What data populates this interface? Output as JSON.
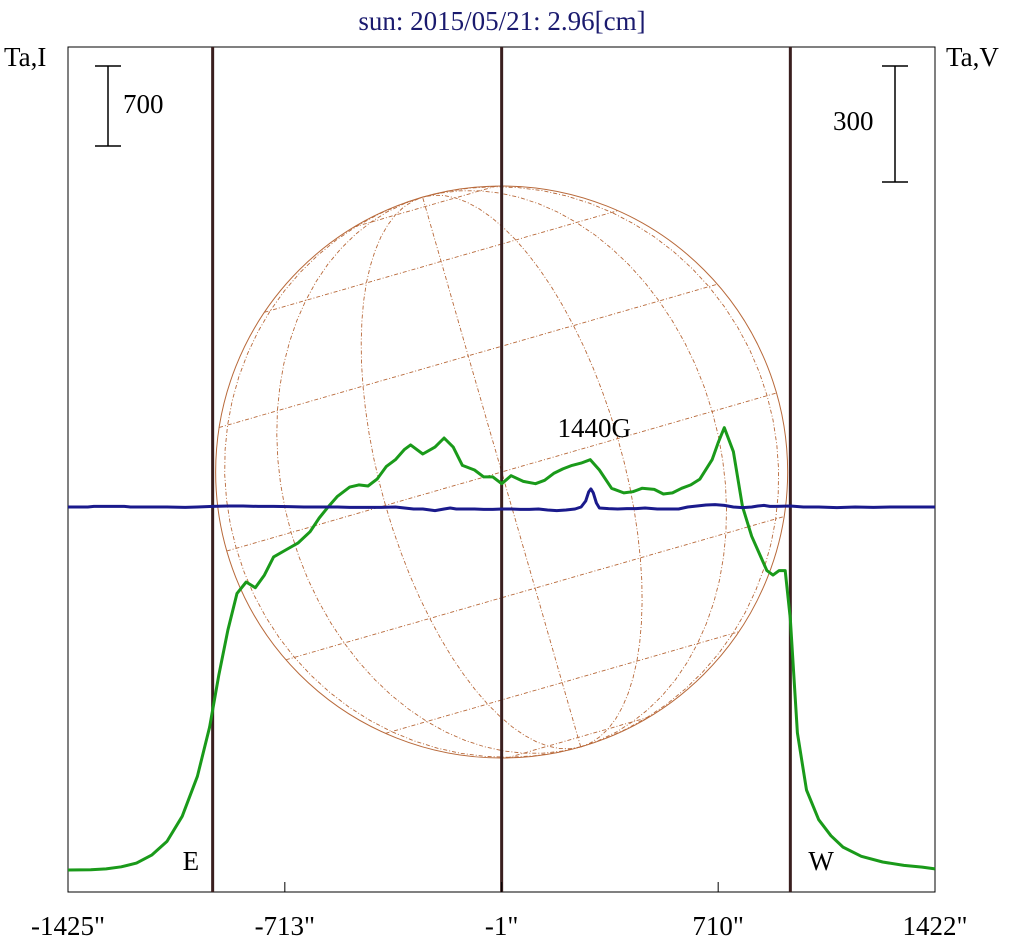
{
  "chart_data": {
    "type": "line",
    "title": "sun: 2015/05/21: 2.96[cm]",
    "left_axis_label": "Ta,I",
    "right_axis_label": "Ta,V",
    "left_scale_bar": "700",
    "right_scale_bar": "300",
    "x_tick_labels": [
      "-1425\"",
      "-713\"",
      "-1\"",
      "710\"",
      "1422\""
    ],
    "x_ticks": [
      -1425,
      -713,
      -1,
      710,
      1422
    ],
    "xlim": [
      -1425,
      1422
    ],
    "limb_markers": [
      {
        "label": "E",
        "x": -950
      },
      {
        "label": "W",
        "x": 947
      }
    ],
    "center_marker_x": -1,
    "annotation": {
      "text": "1440G",
      "x": 290
    },
    "colors": {
      "intensity": "#1a9a1a",
      "polarization": "#1a1a8c",
      "disk": "#b8693a",
      "markers": "#3a1f1f",
      "title": "#1a1a6e"
    },
    "series": [
      {
        "name": "Ta,I",
        "color": "#1a9a1a",
        "points": [
          [
            -1425,
            0
          ],
          [
            -1350,
            3
          ],
          [
            -1300,
            10
          ],
          [
            -1250,
            28
          ],
          [
            -1200,
            60
          ],
          [
            -1150,
            130
          ],
          [
            -1100,
            250
          ],
          [
            -1050,
            470
          ],
          [
            -1000,
            820
          ],
          [
            -960,
            1250
          ],
          [
            -930,
            1700
          ],
          [
            -900,
            2100
          ],
          [
            -870,
            2420
          ],
          [
            -840,
            2520
          ],
          [
            -810,
            2470
          ],
          [
            -780,
            2580
          ],
          [
            -750,
            2740
          ],
          [
            -710,
            2800
          ],
          [
            -670,
            2860
          ],
          [
            -630,
            2960
          ],
          [
            -600,
            3080
          ],
          [
            -570,
            3180
          ],
          [
            -540,
            3270
          ],
          [
            -500,
            3350
          ],
          [
            -470,
            3370
          ],
          [
            -440,
            3360
          ],
          [
            -410,
            3420
          ],
          [
            -380,
            3530
          ],
          [
            -350,
            3590
          ],
          [
            -320,
            3680
          ],
          [
            -300,
            3720
          ],
          [
            -260,
            3640
          ],
          [
            -220,
            3700
          ],
          [
            -190,
            3780
          ],
          [
            -160,
            3700
          ],
          [
            -130,
            3540
          ],
          [
            -90,
            3500
          ],
          [
            -60,
            3440
          ],
          [
            -30,
            3440
          ],
          [
            -1,
            3380
          ],
          [
            30,
            3450
          ],
          [
            70,
            3400
          ],
          [
            110,
            3380
          ],
          [
            140,
            3410
          ],
          [
            170,
            3470
          ],
          [
            200,
            3510
          ],
          [
            230,
            3540
          ],
          [
            260,
            3560
          ],
          [
            290,
            3590
          ],
          [
            320,
            3500
          ],
          [
            360,
            3340
          ],
          [
            400,
            3300
          ],
          [
            430,
            3310
          ],
          [
            460,
            3340
          ],
          [
            500,
            3330
          ],
          [
            530,
            3290
          ],
          [
            560,
            3300
          ],
          [
            590,
            3340
          ],
          [
            620,
            3370
          ],
          [
            650,
            3420
          ],
          [
            690,
            3590
          ],
          [
            710,
            3740
          ],
          [
            730,
            3870
          ],
          [
            760,
            3660
          ],
          [
            790,
            3180
          ],
          [
            820,
            2920
          ],
          [
            850,
            2740
          ],
          [
            870,
            2620
          ],
          [
            890,
            2580
          ],
          [
            910,
            2620
          ],
          [
            930,
            2620
          ],
          [
            947,
            2200
          ],
          [
            970,
            1200
          ],
          [
            1000,
            700
          ],
          [
            1040,
            440
          ],
          [
            1080,
            300
          ],
          [
            1120,
            200
          ],
          [
            1180,
            120
          ],
          [
            1250,
            70
          ],
          [
            1320,
            40
          ],
          [
            1380,
            25
          ],
          [
            1422,
            10
          ]
        ]
      },
      {
        "name": "Ta,V",
        "color": "#1a1a8c",
        "points": [
          [
            -1425,
            0
          ],
          [
            -1360,
            0
          ],
          [
            -1340,
            3
          ],
          [
            -1240,
            3
          ],
          [
            -1220,
            0
          ],
          [
            -1160,
            0
          ],
          [
            -1100,
            0
          ],
          [
            -1040,
            -2
          ],
          [
            -1000,
            0
          ],
          [
            -950,
            3
          ],
          [
            -900,
            5
          ],
          [
            -850,
            5
          ],
          [
            -800,
            3
          ],
          [
            -750,
            3
          ],
          [
            -700,
            2
          ],
          [
            -650,
            0
          ],
          [
            -600,
            0
          ],
          [
            -540,
            0
          ],
          [
            -500,
            -2
          ],
          [
            -450,
            -2
          ],
          [
            -400,
            -2
          ],
          [
            -350,
            0
          ],
          [
            -320,
            -5
          ],
          [
            -290,
            -10
          ],
          [
            -260,
            -10
          ],
          [
            -220,
            -18
          ],
          [
            -190,
            -10
          ],
          [
            -170,
            -5
          ],
          [
            -150,
            -10
          ],
          [
            -120,
            -10
          ],
          [
            -90,
            -10
          ],
          [
            -60,
            -12
          ],
          [
            -30,
            -12
          ],
          [
            0,
            -10
          ],
          [
            30,
            -10
          ],
          [
            60,
            -12
          ],
          [
            90,
            -12
          ],
          [
            120,
            -10
          ],
          [
            150,
            -15
          ],
          [
            180,
            -18
          ],
          [
            210,
            -15
          ],
          [
            240,
            -10
          ],
          [
            260,
            0
          ],
          [
            275,
            30
          ],
          [
            285,
            75
          ],
          [
            292,
            90
          ],
          [
            300,
            70
          ],
          [
            310,
            20
          ],
          [
            320,
            -5
          ],
          [
            350,
            -8
          ],
          [
            380,
            -10
          ],
          [
            410,
            -8
          ],
          [
            440,
            -8
          ],
          [
            470,
            -5
          ],
          [
            510,
            -10
          ],
          [
            540,
            -10
          ],
          [
            580,
            -10
          ],
          [
            610,
            0
          ],
          [
            640,
            5
          ],
          [
            670,
            10
          ],
          [
            700,
            12
          ],
          [
            730,
            8
          ],
          [
            760,
            0
          ],
          [
            790,
            -3
          ],
          [
            820,
            0
          ],
          [
            840,
            5
          ],
          [
            860,
            8
          ],
          [
            880,
            3
          ],
          [
            900,
            3
          ],
          [
            947,
            5
          ],
          [
            990,
            0
          ],
          [
            1040,
            0
          ],
          [
            1100,
            -3
          ],
          [
            1160,
            0
          ],
          [
            1220,
            -2
          ],
          [
            1280,
            0
          ],
          [
            1340,
            0
          ],
          [
            1400,
            0
          ],
          [
            1422,
            0
          ]
        ]
      }
    ]
  }
}
